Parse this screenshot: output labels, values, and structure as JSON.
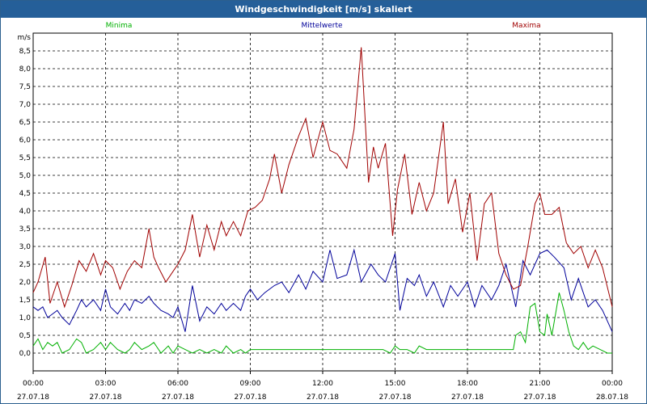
{
  "window": {
    "title": "Windgeschwindigkeit [m/s] skaliert"
  },
  "chart_data": {
    "type": "line",
    "title": "Windgeschwindigkeit [m/s] skaliert",
    "ylabel": "m/s",
    "xlabel": "",
    "ylim": [
      -0.5,
      9.0
    ],
    "xlim": [
      0,
      24
    ],
    "y_ticks": [
      "0,0",
      "0,5",
      "1,0",
      "1,5",
      "2,0",
      "2,5",
      "3,0",
      "3,5",
      "4,0",
      "4,5",
      "5,0",
      "5,5",
      "6,0",
      "6,5",
      "7,0",
      "7,5",
      "8,0",
      "8,5"
    ],
    "x_ticks": [
      {
        "time": "00:00",
        "date": "27.07.18"
      },
      {
        "time": "03:00",
        "date": "27.07.18"
      },
      {
        "time": "06:00",
        "date": "27.07.18"
      },
      {
        "time": "09:00",
        "date": "27.07.18"
      },
      {
        "time": "12:00",
        "date": "27.07.18"
      },
      {
        "time": "15:00",
        "date": "27.07.18"
      },
      {
        "time": "18:00",
        "date": "27.07.18"
      },
      {
        "time": "21:00",
        "date": "27.07.18"
      },
      {
        "time": "00:00",
        "date": "28.07.18"
      }
    ],
    "grid": true,
    "legend_position": "top",
    "series": [
      {
        "name": "Minima",
        "color": "#00b000",
        "x": [
          0,
          0.2,
          0.4,
          0.6,
          0.8,
          1.0,
          1.2,
          1.5,
          1.8,
          2.0,
          2.2,
          2.5,
          2.8,
          3.0,
          3.2,
          3.5,
          3.8,
          4.0,
          4.2,
          4.5,
          4.8,
          5.0,
          5.3,
          5.6,
          5.8,
          6.0,
          6.3,
          6.6,
          6.9,
          7.2,
          7.5,
          7.8,
          8.0,
          8.3,
          8.6,
          8.8,
          9.0,
          9.3,
          9.6,
          10.0,
          10.5,
          11.0,
          11.5,
          12.0,
          12.5,
          13.0,
          13.5,
          14.0,
          14.5,
          14.8,
          15.0,
          15.2,
          15.5,
          15.8,
          16.0,
          16.3,
          16.6,
          17.0,
          17.5,
          18.0,
          18.5,
          19.0,
          19.5,
          19.9,
          20.0,
          20.2,
          20.4,
          20.6,
          20.8,
          21.0,
          21.2,
          21.3,
          21.5,
          21.8,
          22.0,
          22.2,
          22.4,
          22.6,
          22.8,
          23.0,
          23.2,
          23.5,
          23.8,
          24.0
        ],
        "y": [
          0.2,
          0.4,
          0.1,
          0.3,
          0.2,
          0.3,
          0.0,
          0.1,
          0.4,
          0.3,
          0.0,
          0.1,
          0.3,
          0.1,
          0.3,
          0.1,
          0.0,
          0.1,
          0.3,
          0.1,
          0.2,
          0.3,
          0.0,
          0.2,
          0.0,
          0.2,
          0.1,
          0.0,
          0.1,
          0.0,
          0.1,
          0.0,
          0.2,
          0.0,
          0.1,
          0.0,
          0.1,
          0.1,
          0.1,
          0.1,
          0.1,
          0.1,
          0.1,
          0.1,
          0.1,
          0.1,
          0.1,
          0.1,
          0.1,
          0.0,
          0.2,
          0.1,
          0.1,
          0.0,
          0.2,
          0.1,
          0.1,
          0.1,
          0.1,
          0.1,
          0.1,
          0.1,
          0.1,
          0.1,
          0.5,
          0.6,
          0.3,
          1.3,
          1.4,
          0.6,
          0.5,
          1.1,
          0.5,
          1.7,
          1.2,
          0.6,
          0.2,
          0.1,
          0.3,
          0.1,
          0.2,
          0.1,
          0.0,
          0.0
        ]
      },
      {
        "name": "Mittelwerte",
        "color": "#000099",
        "x": [
          0,
          0.2,
          0.4,
          0.6,
          0.8,
          1.0,
          1.2,
          1.5,
          1.8,
          2.0,
          2.2,
          2.5,
          2.8,
          3.0,
          3.2,
          3.5,
          3.8,
          4.0,
          4.2,
          4.5,
          4.8,
          5.0,
          5.3,
          5.6,
          5.8,
          6.0,
          6.3,
          6.6,
          6.9,
          7.2,
          7.5,
          7.8,
          8.0,
          8.3,
          8.6,
          8.8,
          9.0,
          9.3,
          9.6,
          10.0,
          10.3,
          10.6,
          11.0,
          11.3,
          11.6,
          12.0,
          12.3,
          12.6,
          13.0,
          13.3,
          13.6,
          14.0,
          14.3,
          14.6,
          15.0,
          15.2,
          15.5,
          15.8,
          16.0,
          16.3,
          16.6,
          17.0,
          17.3,
          17.6,
          18.0,
          18.3,
          18.6,
          19.0,
          19.3,
          19.6,
          20.0,
          20.3,
          20.6,
          21.0,
          21.3,
          21.6,
          22.0,
          22.3,
          22.6,
          23.0,
          23.3,
          23.6,
          24.0
        ],
        "y": [
          1.3,
          1.2,
          1.3,
          1.0,
          1.1,
          1.2,
          1.0,
          0.8,
          1.2,
          1.5,
          1.3,
          1.5,
          1.2,
          1.8,
          1.3,
          1.1,
          1.4,
          1.2,
          1.5,
          1.4,
          1.6,
          1.4,
          1.2,
          1.1,
          1.0,
          1.3,
          0.6,
          1.9,
          0.9,
          1.3,
          1.1,
          1.4,
          1.2,
          1.4,
          1.2,
          1.6,
          1.8,
          1.5,
          1.7,
          1.9,
          2.0,
          1.7,
          2.2,
          1.8,
          2.3,
          2.0,
          2.9,
          2.1,
          2.2,
          2.9,
          2.0,
          2.5,
          2.2,
          2.0,
          2.8,
          1.2,
          2.1,
          1.9,
          2.2,
          1.6,
          2.0,
          1.3,
          1.9,
          1.6,
          2.0,
          1.3,
          1.9,
          1.5,
          1.9,
          2.5,
          1.3,
          2.6,
          2.2,
          2.8,
          2.9,
          2.7,
          2.4,
          1.5,
          2.1,
          1.3,
          1.5,
          1.2,
          0.6
        ]
      },
      {
        "name": "Maxima",
        "color": "#a00000",
        "x": [
          0,
          0.2,
          0.5,
          0.7,
          1.0,
          1.3,
          1.6,
          1.9,
          2.2,
          2.5,
          2.8,
          3.0,
          3.3,
          3.6,
          3.9,
          4.2,
          4.5,
          4.8,
          5.0,
          5.2,
          5.5,
          5.8,
          6.0,
          6.3,
          6.6,
          6.9,
          7.2,
          7.5,
          7.8,
          8.0,
          8.3,
          8.6,
          8.9,
          9.2,
          9.5,
          9.8,
          10.0,
          10.3,
          10.6,
          11.0,
          11.3,
          11.6,
          12.0,
          12.3,
          12.6,
          13.0,
          13.3,
          13.6,
          13.9,
          14.1,
          14.3,
          14.6,
          14.9,
          15.1,
          15.4,
          15.7,
          16.0,
          16.3,
          16.6,
          17.0,
          17.2,
          17.5,
          17.8,
          18.1,
          18.4,
          18.7,
          19.0,
          19.3,
          19.6,
          19.9,
          20.2,
          20.5,
          20.8,
          21.0,
          21.2,
          21.5,
          21.8,
          22.1,
          22.4,
          22.7,
          23.0,
          23.3,
          23.6,
          24.0
        ],
        "y": [
          1.7,
          2.0,
          2.7,
          1.4,
          2.0,
          1.3,
          1.9,
          2.6,
          2.3,
          2.8,
          2.2,
          2.6,
          2.4,
          1.8,
          2.3,
          2.6,
          2.4,
          3.5,
          2.7,
          2.4,
          2.0,
          2.3,
          2.5,
          2.9,
          3.9,
          2.7,
          3.6,
          2.9,
          3.7,
          3.3,
          3.7,
          3.3,
          4.0,
          4.1,
          4.3,
          4.9,
          5.6,
          4.5,
          5.3,
          6.1,
          6.6,
          5.5,
          6.5,
          5.7,
          5.6,
          5.2,
          6.3,
          8.6,
          4.8,
          5.8,
          5.2,
          5.9,
          3.3,
          4.6,
          5.6,
          3.9,
          4.8,
          4.0,
          4.5,
          6.5,
          4.2,
          4.9,
          3.4,
          4.5,
          2.6,
          4.2,
          4.5,
          2.8,
          2.2,
          1.8,
          1.9,
          3.0,
          4.2,
          4.5,
          3.9,
          3.9,
          4.1,
          3.1,
          2.8,
          3.0,
          2.4,
          2.9,
          2.4,
          1.3
        ]
      }
    ]
  }
}
